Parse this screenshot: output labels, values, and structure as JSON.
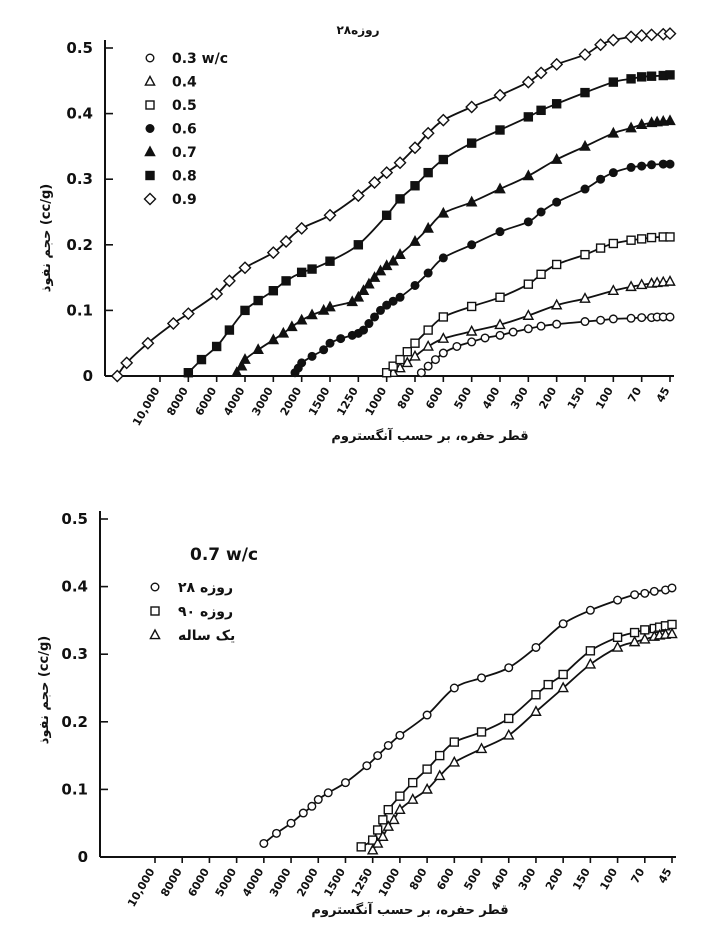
{
  "chart_data": [
    {
      "type": "line",
      "title": "۲۸روزه",
      "xlabel": "قطر حفره، بر حسب آنگستروم",
      "ylabel": "حجم نفوذ (cc/g)",
      "x_scale": "log-reversed",
      "xticks": [
        "10,000",
        "8000",
        "6000",
        "4000",
        "3000",
        "2000",
        "1500",
        "1250",
        "1000",
        "800",
        "600",
        "500",
        "400",
        "300",
        "200",
        "150",
        "100",
        "70",
        "45"
      ],
      "yticks": [
        "0.5",
        "0.4",
        "0.3",
        "0.2",
        "0.1",
        "0"
      ],
      "ylim": [
        0,
        0.5
      ],
      "legend_position": "top-left",
      "series": [
        {
          "name": "0.3 w/c",
          "marker": "circle-open",
          "x": [
            750,
            700,
            650,
            600,
            550,
            500,
            450,
            400,
            350,
            300,
            250,
            200,
            150,
            120,
            100,
            80,
            70,
            60,
            55,
            50,
            45
          ],
          "y": [
            0.005,
            0.015,
            0.025,
            0.035,
            0.045,
            0.052,
            0.058,
            0.062,
            0.067,
            0.072,
            0.076,
            0.079,
            0.083,
            0.085,
            0.087,
            0.088,
            0.089,
            0.089,
            0.09,
            0.09,
            0.09
          ]
        },
        {
          "name": "0.4",
          "marker": "triangle-open",
          "x": [
            950,
            900,
            850,
            800,
            700,
            600,
            500,
            400,
            300,
            200,
            150,
            100,
            80,
            70,
            60,
            55,
            50,
            45
          ],
          "y": [
            0.005,
            0.012,
            0.02,
            0.03,
            0.045,
            0.057,
            0.068,
            0.078,
            0.092,
            0.108,
            0.118,
            0.13,
            0.136,
            0.139,
            0.141,
            0.142,
            0.143,
            0.144
          ]
        },
        {
          "name": "0.5",
          "marker": "square-open",
          "x": [
            1000,
            950,
            900,
            850,
            800,
            700,
            600,
            500,
            400,
            300,
            250,
            200,
            150,
            120,
            100,
            80,
            70,
            60,
            50,
            45
          ],
          "y": [
            0.005,
            0.015,
            0.025,
            0.037,
            0.05,
            0.07,
            0.09,
            0.106,
            0.12,
            0.14,
            0.155,
            0.17,
            0.185,
            0.195,
            0.202,
            0.207,
            0.209,
            0.211,
            0.212,
            0.212
          ]
        },
        {
          "name": "0.6",
          "marker": "circle-filled",
          "x": [
            2200,
            2100,
            2000,
            1800,
            1600,
            1500,
            1400,
            1300,
            1250,
            1200,
            1150,
            1100,
            1050,
            1000,
            950,
            900,
            800,
            700,
            600,
            500,
            400,
            300,
            250,
            200,
            150,
            120,
            100,
            80,
            70,
            60,
            50,
            45
          ],
          "y": [
            0.005,
            0.012,
            0.02,
            0.03,
            0.04,
            0.05,
            0.057,
            0.062,
            0.065,
            0.07,
            0.08,
            0.09,
            0.1,
            0.108,
            0.114,
            0.12,
            0.138,
            0.157,
            0.18,
            0.2,
            0.22,
            0.235,
            0.25,
            0.265,
            0.285,
            0.3,
            0.31,
            0.318,
            0.32,
            0.322,
            0.323,
            0.323
          ]
        },
        {
          "name": "0.7",
          "marker": "triangle-filled",
          "x": [
            4500,
            4200,
            4000,
            3500,
            3000,
            2600,
            2300,
            2000,
            1800,
            1600,
            1500,
            1300,
            1250,
            1200,
            1150,
            1100,
            1050,
            1000,
            950,
            900,
            800,
            700,
            600,
            500,
            400,
            300,
            200,
            150,
            100,
            80,
            70,
            60,
            55,
            50,
            45
          ],
          "y": [
            0.005,
            0.015,
            0.025,
            0.04,
            0.055,
            0.065,
            0.075,
            0.085,
            0.093,
            0.1,
            0.105,
            0.113,
            0.12,
            0.13,
            0.14,
            0.15,
            0.16,
            0.168,
            0.175,
            0.185,
            0.205,
            0.225,
            0.248,
            0.265,
            0.285,
            0.305,
            0.33,
            0.35,
            0.37,
            0.378,
            0.383,
            0.386,
            0.387,
            0.388,
            0.389
          ]
        },
        {
          "name": "0.8",
          "marker": "square-filled",
          "x": [
            8000,
            7000,
            6000,
            5000,
            4000,
            3500,
            3000,
            2500,
            2000,
            1800,
            1500,
            1250,
            1000,
            900,
            800,
            700,
            600,
            500,
            400,
            300,
            250,
            200,
            150,
            100,
            80,
            70,
            60,
            50,
            45
          ],
          "y": [
            0.005,
            0.025,
            0.045,
            0.07,
            0.1,
            0.115,
            0.13,
            0.145,
            0.158,
            0.163,
            0.175,
            0.2,
            0.245,
            0.27,
            0.29,
            0.31,
            0.33,
            0.355,
            0.375,
            0.395,
            0.405,
            0.415,
            0.432,
            0.448,
            0.453,
            0.456,
            0.457,
            0.458,
            0.459
          ]
        },
        {
          "name": "0.9",
          "marker": "diamond-open",
          "x": [
            14000,
            13000,
            11000,
            9000,
            8000,
            6000,
            5000,
            4000,
            3000,
            2500,
            2000,
            1500,
            1250,
            1100,
            1000,
            900,
            800,
            700,
            600,
            500,
            400,
            300,
            250,
            200,
            150,
            120,
            100,
            80,
            70,
            60,
            50,
            45
          ],
          "y": [
            0.0,
            0.02,
            0.05,
            0.08,
            0.095,
            0.125,
            0.145,
            0.165,
            0.188,
            0.205,
            0.225,
            0.245,
            0.275,
            0.295,
            0.31,
            0.325,
            0.348,
            0.37,
            0.39,
            0.41,
            0.428,
            0.448,
            0.462,
            0.475,
            0.49,
            0.505,
            0.512,
            0.517,
            0.519,
            0.52,
            0.521,
            0.522
          ]
        }
      ]
    },
    {
      "type": "line",
      "title": "0.7 w/c",
      "xlabel": "قطر حفره، بر حسب آنگستروم",
      "ylabel": "حجم نفوذ (cc/g)",
      "x_scale": "log-reversed",
      "xticks": [
        "10,000",
        "8000",
        "6000",
        "5000",
        "4000",
        "3000",
        "2000",
        "1500",
        "1250",
        "1000",
        "800",
        "600",
        "500",
        "400",
        "300",
        "200",
        "150",
        "100",
        "70",
        "45"
      ],
      "yticks": [
        "0.5",
        "0.4",
        "0.3",
        "0.2",
        "0.1",
        "0"
      ],
      "ylim": [
        0,
        0.5
      ],
      "legend_position": "top-left",
      "series": [
        {
          "name": "۲۸ روزه",
          "marker": "circle-open",
          "x": [
            4000,
            3500,
            3000,
            2500,
            2200,
            2000,
            1800,
            1500,
            1300,
            1200,
            1100,
            1000,
            800,
            600,
            500,
            400,
            300,
            200,
            150,
            100,
            80,
            70,
            60,
            50,
            45
          ],
          "y": [
            0.02,
            0.035,
            0.05,
            0.065,
            0.075,
            0.085,
            0.095,
            0.11,
            0.135,
            0.15,
            0.165,
            0.18,
            0.21,
            0.25,
            0.265,
            0.28,
            0.31,
            0.345,
            0.365,
            0.38,
            0.388,
            0.39,
            0.393,
            0.395,
            0.398
          ]
        },
        {
          "name": "۹۰ روزه",
          "marker": "square-open",
          "x": [
            1350,
            1250,
            1200,
            1150,
            1100,
            1000,
            900,
            800,
            700,
            600,
            500,
            400,
            300,
            250,
            200,
            150,
            100,
            80,
            70,
            60,
            55,
            50,
            45
          ],
          "y": [
            0.015,
            0.025,
            0.04,
            0.055,
            0.07,
            0.09,
            0.11,
            0.13,
            0.15,
            0.17,
            0.185,
            0.205,
            0.24,
            0.255,
            0.27,
            0.305,
            0.325,
            0.332,
            0.336,
            0.338,
            0.34,
            0.342,
            0.344
          ]
        },
        {
          "name": "یک ساله",
          "marker": "triangle-open",
          "x": [
            1250,
            1200,
            1150,
            1100,
            1050,
            1000,
            900,
            800,
            700,
            600,
            500,
            400,
            300,
            200,
            150,
            100,
            80,
            70,
            60,
            55,
            50,
            45
          ],
          "y": [
            0.01,
            0.02,
            0.03,
            0.045,
            0.055,
            0.07,
            0.085,
            0.1,
            0.12,
            0.14,
            0.16,
            0.18,
            0.215,
            0.25,
            0.285,
            0.31,
            0.318,
            0.322,
            0.326,
            0.328,
            0.329,
            0.33
          ]
        }
      ]
    }
  ]
}
